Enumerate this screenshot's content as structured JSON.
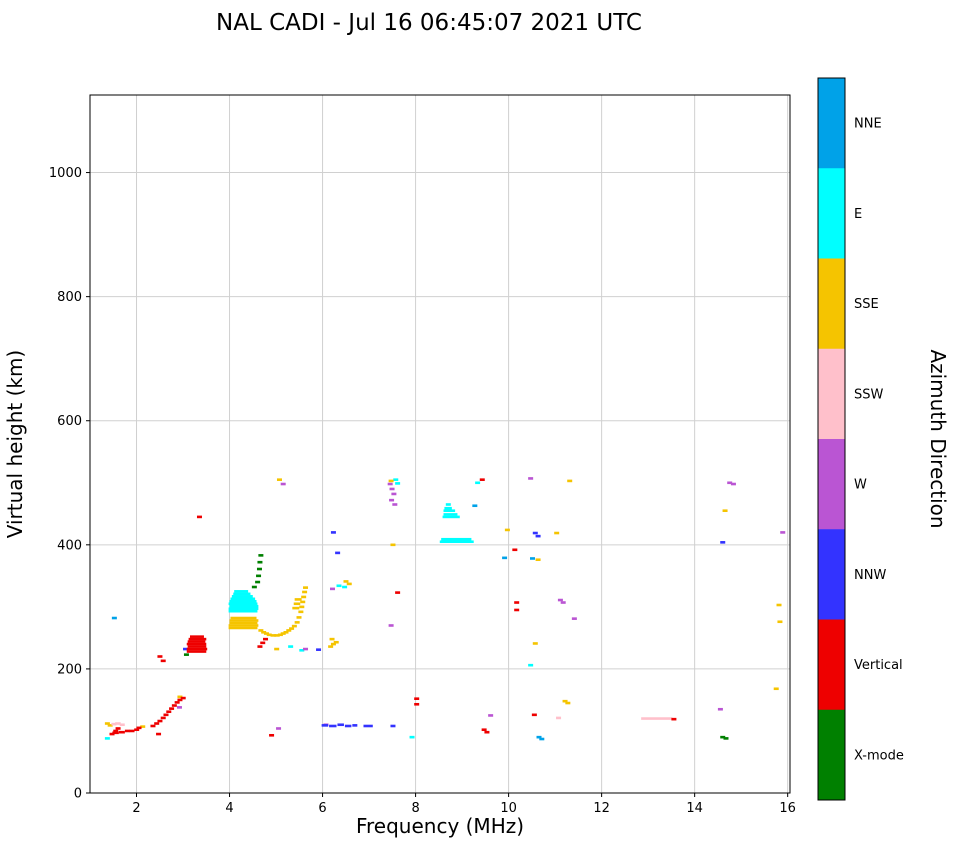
{
  "chart_data": {
    "type": "scatter",
    "mark": "horizontal-dash",
    "title": "NAL CADI - Jul 16 06:45:07 2021 UTC",
    "xlabel": "Frequency (MHz)",
    "ylabel": "Virtual height (km)",
    "xlim": [
      1.0,
      16.05
    ],
    "ylim": [
      0,
      1125
    ],
    "xticks": [
      2,
      4,
      6,
      8,
      10,
      12,
      14,
      16
    ],
    "yticks": [
      0,
      200,
      400,
      600,
      800,
      1000
    ],
    "grid": true,
    "grid_color": "#d0d0d0",
    "colorbar": {
      "title": "Azimuth Direction",
      "position": "right",
      "segments": [
        {
          "label": "NNE",
          "color": "#00a2e8"
        },
        {
          "label": "E",
          "color": "#00ffff"
        },
        {
          "label": "SSE",
          "color": "#f5c400"
        },
        {
          "label": "SSW",
          "color": "#ffc0cb"
        },
        {
          "label": "W",
          "color": "#ba55d3"
        },
        {
          "label": "NNW",
          "color": "#3333ff"
        },
        {
          "label": "Vertical",
          "color": "#ee0000"
        },
        {
          "label": "X-mode",
          "color": "#008000"
        }
      ]
    },
    "series": [
      {
        "name": "NNE",
        "color": "#00a2e8",
        "runs": [
          [
            1.47,
            1.53,
            282
          ],
          [
            9.22,
            9.28,
            463
          ],
          [
            9.86,
            9.94,
            379
          ],
          [
            10.46,
            10.54,
            378
          ],
          [
            10.6,
            10.68,
            90
          ],
          [
            10.66,
            10.72,
            87
          ]
        ]
      },
      {
        "name": "E",
        "color": "#00ffff",
        "runs": [
          [
            1.32,
            1.38,
            88
          ],
          [
            3.98,
            4.6,
            293
          ],
          [
            3.98,
            4.62,
            297
          ],
          [
            4.0,
            4.62,
            301
          ],
          [
            3.98,
            4.6,
            305
          ],
          [
            4.0,
            4.58,
            309
          ],
          [
            4.02,
            4.55,
            313
          ],
          [
            4.05,
            4.5,
            317
          ],
          [
            4.08,
            4.45,
            321
          ],
          [
            4.1,
            4.4,
            325
          ],
          [
            5.26,
            5.34,
            236
          ],
          [
            5.5,
            5.6,
            230
          ],
          [
            6.3,
            6.4,
            334
          ],
          [
            6.42,
            6.52,
            332
          ],
          [
            7.52,
            7.6,
            505
          ],
          [
            7.56,
            7.64,
            499
          ],
          [
            7.87,
            7.93,
            90
          ],
          [
            8.52,
            9.25,
            405
          ],
          [
            8.55,
            9.2,
            409
          ],
          [
            8.58,
            8.95,
            445
          ],
          [
            8.6,
            8.9,
            449
          ],
          [
            8.6,
            8.85,
            455
          ],
          [
            8.62,
            8.78,
            459
          ],
          [
            8.65,
            8.75,
            465
          ],
          [
            9.28,
            9.35,
            500
          ],
          [
            10.42,
            10.5,
            206
          ]
        ]
      },
      {
        "name": "SSE",
        "color": "#f5c400",
        "runs": [
          [
            1.32,
            1.38,
            112
          ],
          [
            1.38,
            1.44,
            109
          ],
          [
            2.08,
            2.14,
            107
          ],
          [
            2.88,
            2.95,
            155
          ],
          [
            3.98,
            4.6,
            266
          ],
          [
            3.98,
            4.62,
            270
          ],
          [
            4.0,
            4.6,
            274
          ],
          [
            4.0,
            4.62,
            278
          ],
          [
            4.02,
            4.58,
            282
          ],
          [
            4.62,
            4.7,
            262
          ],
          [
            4.68,
            4.76,
            259
          ],
          [
            4.74,
            4.84,
            257
          ],
          [
            4.8,
            4.9,
            255
          ],
          [
            4.88,
            5.0,
            254
          ],
          [
            4.96,
            5.08,
            254
          ],
          [
            5.04,
            5.14,
            255
          ],
          [
            5.1,
            5.2,
            257
          ],
          [
            5.16,
            5.26,
            259
          ],
          [
            5.22,
            5.32,
            262
          ],
          [
            5.28,
            5.38,
            265
          ],
          [
            5.34,
            5.44,
            269
          ],
          [
            5.4,
            5.48,
            275
          ],
          [
            5.44,
            5.52,
            283
          ],
          [
            5.48,
            5.56,
            292
          ],
          [
            5.5,
            5.58,
            300
          ],
          [
            5.52,
            5.6,
            308
          ],
          [
            5.54,
            5.62,
            316
          ],
          [
            5.56,
            5.64,
            324
          ],
          [
            5.58,
            5.66,
            331
          ],
          [
            5.35,
            5.5,
            298
          ],
          [
            5.38,
            5.52,
            305
          ],
          [
            5.4,
            5.55,
            312
          ],
          [
            4.96,
            5.04,
            232
          ],
          [
            5.02,
            5.08,
            505
          ],
          [
            6.12,
            6.2,
            236
          ],
          [
            6.18,
            6.28,
            240
          ],
          [
            6.24,
            6.34,
            243
          ],
          [
            6.15,
            6.25,
            248
          ],
          [
            6.45,
            6.55,
            341
          ],
          [
            6.52,
            6.62,
            337
          ],
          [
            7.42,
            7.5,
            503
          ],
          [
            7.46,
            7.54,
            400
          ],
          [
            9.92,
            10.0,
            424
          ],
          [
            10.52,
            10.6,
            241
          ],
          [
            10.58,
            10.66,
            376
          ],
          [
            10.98,
            11.06,
            419
          ],
          [
            11.16,
            11.24,
            148
          ],
          [
            11.22,
            11.3,
            145
          ],
          [
            11.26,
            11.34,
            503
          ],
          [
            14.6,
            14.7,
            455
          ],
          [
            15.7,
            15.78,
            168
          ],
          [
            15.76,
            15.84,
            303
          ],
          [
            15.78,
            15.86,
            276
          ]
        ]
      },
      {
        "name": "SSW",
        "color": "#ffc0cb",
        "runs": [
          [
            1.46,
            1.56,
            111
          ],
          [
            1.54,
            1.66,
            112
          ],
          [
            1.64,
            1.74,
            110
          ],
          [
            11.02,
            11.08,
            121
          ],
          [
            12.85,
            13.52,
            120
          ]
        ]
      },
      {
        "name": "W",
        "color": "#ba55d3",
        "runs": [
          [
            2.87,
            2.93,
            138
          ],
          [
            5.0,
            5.06,
            104
          ],
          [
            5.1,
            5.16,
            498
          ],
          [
            5.58,
            5.66,
            232
          ],
          [
            6.02,
            6.08,
            110
          ],
          [
            6.16,
            6.26,
            329
          ],
          [
            7.4,
            7.46,
            498
          ],
          [
            7.44,
            7.52,
            490
          ],
          [
            7.48,
            7.56,
            482
          ],
          [
            7.43,
            7.5,
            472
          ],
          [
            7.5,
            7.58,
            465
          ],
          [
            7.42,
            7.48,
            270
          ],
          [
            9.56,
            9.63,
            125
          ],
          [
            10.42,
            10.48,
            507
          ],
          [
            11.06,
            11.14,
            311
          ],
          [
            11.12,
            11.2,
            307
          ],
          [
            11.36,
            11.46,
            281
          ],
          [
            14.5,
            14.58,
            135
          ],
          [
            14.7,
            14.8,
            500
          ],
          [
            14.78,
            14.88,
            498
          ],
          [
            15.84,
            15.92,
            420
          ]
        ]
      },
      {
        "name": "NNW",
        "color": "#3333ff",
        "runs": [
          [
            3.0,
            3.06,
            232
          ],
          [
            5.86,
            5.94,
            231
          ],
          [
            5.98,
            6.12,
            109
          ],
          [
            6.14,
            6.3,
            108
          ],
          [
            6.32,
            6.46,
            110
          ],
          [
            6.48,
            6.62,
            108
          ],
          [
            6.64,
            6.72,
            109
          ],
          [
            6.88,
            7.08,
            108
          ],
          [
            7.46,
            7.54,
            108
          ],
          [
            6.18,
            6.26,
            420
          ],
          [
            6.27,
            6.35,
            387
          ],
          [
            10.52,
            10.6,
            419
          ],
          [
            10.58,
            10.66,
            414
          ],
          [
            14.55,
            14.65,
            404
          ]
        ]
      },
      {
        "name": "Vertical",
        "color": "#ee0000",
        "runs": [
          [
            1.42,
            1.48,
            95
          ],
          [
            1.48,
            1.62,
            97
          ],
          [
            1.5,
            1.6,
            100
          ],
          [
            1.62,
            1.75,
            98
          ],
          [
            1.75,
            1.85,
            100
          ],
          [
            1.85,
            1.95,
            100
          ],
          [
            1.95,
            2.05,
            102
          ],
          [
            1.55,
            1.65,
            104
          ],
          [
            2.0,
            2.1,
            105
          ],
          [
            2.3,
            2.38,
            108
          ],
          [
            2.38,
            2.45,
            112
          ],
          [
            2.45,
            2.52,
            116
          ],
          [
            2.52,
            2.6,
            121
          ],
          [
            2.58,
            2.66,
            126
          ],
          [
            2.64,
            2.72,
            131
          ],
          [
            2.7,
            2.78,
            136
          ],
          [
            2.76,
            2.84,
            141
          ],
          [
            2.82,
            2.9,
            146
          ],
          [
            2.88,
            2.96,
            150
          ],
          [
            2.95,
            3.02,
            153
          ],
          [
            2.42,
            2.48,
            95
          ],
          [
            2.45,
            2.52,
            220
          ],
          [
            2.52,
            2.58,
            213
          ],
          [
            3.08,
            3.5,
            228
          ],
          [
            3.08,
            3.52,
            232
          ],
          [
            3.1,
            3.5,
            236
          ],
          [
            3.08,
            3.5,
            240
          ],
          [
            3.1,
            3.48,
            244
          ],
          [
            3.12,
            3.5,
            248
          ],
          [
            3.15,
            3.45,
            252
          ],
          [
            3.3,
            3.38,
            445
          ],
          [
            4.6,
            4.68,
            236
          ],
          [
            4.66,
            4.75,
            242
          ],
          [
            4.72,
            4.8,
            248
          ],
          [
            4.85,
            4.92,
            93
          ],
          [
            7.56,
            7.64,
            323
          ],
          [
            7.97,
            8.03,
            152
          ],
          [
            7.97,
            8.03,
            143
          ],
          [
            9.38,
            9.45,
            505
          ],
          [
            9.42,
            9.5,
            102
          ],
          [
            9.48,
            9.56,
            98
          ],
          [
            10.08,
            10.15,
            392
          ],
          [
            10.12,
            10.18,
            307
          ],
          [
            10.12,
            10.18,
            295
          ],
          [
            10.5,
            10.56,
            126
          ],
          [
            13.5,
            13.58,
            119
          ]
        ]
      },
      {
        "name": "X-mode",
        "color": "#008000",
        "runs": [
          [
            3.02,
            3.08,
            223
          ],
          [
            4.48,
            4.58,
            332
          ],
          [
            4.55,
            4.62,
            340
          ],
          [
            4.57,
            4.63,
            350
          ],
          [
            4.59,
            4.65,
            361
          ],
          [
            4.6,
            4.66,
            372
          ],
          [
            4.62,
            4.68,
            383
          ],
          [
            14.55,
            14.63,
            90
          ],
          [
            14.62,
            14.7,
            88
          ]
        ]
      }
    ]
  }
}
